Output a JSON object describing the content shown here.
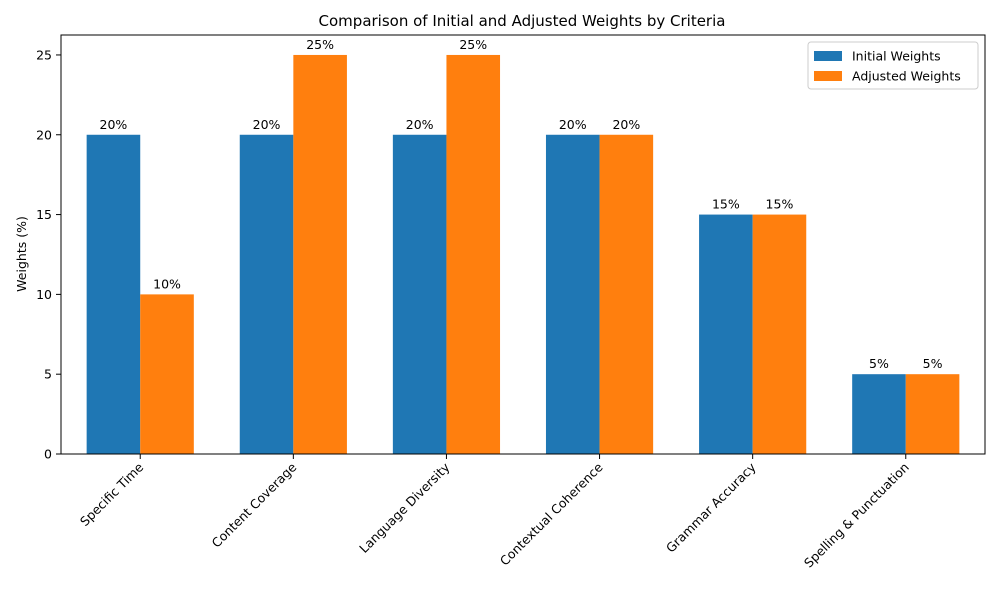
{
  "chart_data": {
    "type": "bar",
    "title": "Comparison of Initial and Adjusted Weights by Criteria",
    "xlabel": "",
    "ylabel": "Weights (%)",
    "categories": [
      "Specific Time",
      "Content Coverage",
      "Language Diversity",
      "Contextual Coherence",
      "Grammar Accuracy",
      "Spelling & Punctuation"
    ],
    "series": [
      {
        "name": "Initial Weights",
        "values": [
          20,
          20,
          20,
          20,
          15,
          5
        ],
        "labels": [
          "20%",
          "20%",
          "20%",
          "20%",
          "15%",
          "5%"
        ],
        "color": "#1f77b4"
      },
      {
        "name": "Adjusted Weights",
        "values": [
          10,
          25,
          25,
          20,
          15,
          5
        ],
        "labels": [
          "10%",
          "25%",
          "25%",
          "20%",
          "15%",
          "5%"
        ],
        "color": "#ff7f0e"
      }
    ],
    "ylim": [
      0,
      26.25
    ],
    "yticks": [
      "0",
      "5",
      "10",
      "15",
      "20",
      "25"
    ],
    "grid": false,
    "legend_position": "top-right"
  }
}
